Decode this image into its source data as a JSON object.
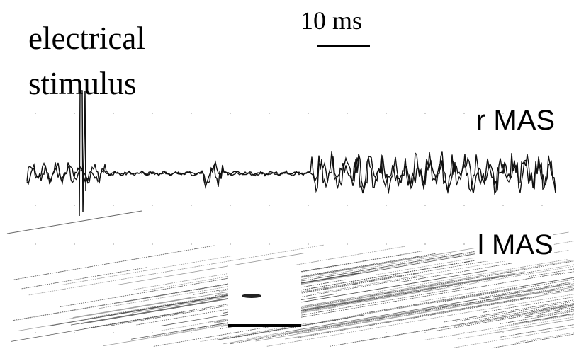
{
  "labels": {
    "stimulus": "electrical stimulus",
    "scale_bar": "10 ms",
    "upper_trace": "r MAS",
    "lower_trace": "l MAS"
  }
}
